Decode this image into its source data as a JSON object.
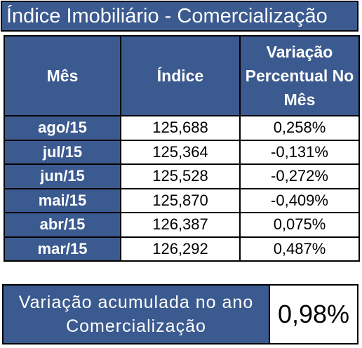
{
  "title": "Índice Imobiliário - Comercialização",
  "table": {
    "headers": {
      "month": "Mês",
      "index": "Índice",
      "variation_line1": "Variação",
      "variation_line2": "Percentual No",
      "variation_line3": "Mês"
    },
    "rows": [
      {
        "month": "ago/15",
        "index": "125,688",
        "variation": "0,258%"
      },
      {
        "month": "jul/15",
        "index": "125,364",
        "variation": "-0,131%"
      },
      {
        "month": "jun/15",
        "index": "125,528",
        "variation": "-0,272%"
      },
      {
        "month": "mai/15",
        "index": "125,870",
        "variation": "-0,409%"
      },
      {
        "month": "abr/15",
        "index": "126,387",
        "variation": "0,075%"
      },
      {
        "month": "mar/15",
        "index": "126,292",
        "variation": "0,487%"
      }
    ]
  },
  "summary": {
    "label_line1": "Variação acumulada no ano",
    "label_line2": "Comercialização",
    "value": "0,98%"
  },
  "colors": {
    "header_blue": "#3b5a8f",
    "text_white": "#ffffff",
    "border": "#000000"
  }
}
